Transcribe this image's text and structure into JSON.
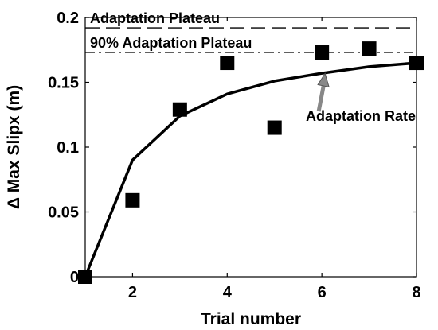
{
  "chart_data": {
    "type": "scatter",
    "xlabel": "Trial number",
    "ylabel": "Δ Max Slipx (m)",
    "xlim": [
      1,
      8
    ],
    "ylim": [
      0,
      0.2
    ],
    "x_ticks": [
      2,
      4,
      6,
      8
    ],
    "y_ticks": [
      0,
      0.05,
      0.1,
      0.15,
      0.2
    ],
    "y_tick_labels": [
      "0",
      "0.05",
      "0.1",
      "0.15",
      "0.2"
    ],
    "grid": false,
    "series": [
      {
        "type": "scatter",
        "marker": "square",
        "color": "#000000",
        "x": [
          1,
          2,
          3,
          4,
          5,
          6,
          7,
          8
        ],
        "y": [
          0.0,
          0.059,
          0.129,
          0.165,
          0.115,
          0.173,
          0.176,
          0.165
        ]
      },
      {
        "type": "line",
        "color": "#000000",
        "x": [
          1,
          2,
          3,
          4,
          5,
          6,
          7,
          8
        ],
        "y": [
          0.0,
          0.09,
          0.124,
          0.141,
          0.151,
          0.157,
          0.162,
          0.165
        ]
      }
    ],
    "reference_lines": [
      {
        "label": "Adaptation Plateau",
        "y": 0.192,
        "style": "dashed"
      },
      {
        "label": "90% Adaptation Plateau",
        "y": 0.173,
        "style": "dashdot"
      }
    ],
    "annotations": [
      {
        "text": "Adaptation Rate",
        "arrow_x": 6,
        "arrow_y": 0.158
      }
    ]
  }
}
